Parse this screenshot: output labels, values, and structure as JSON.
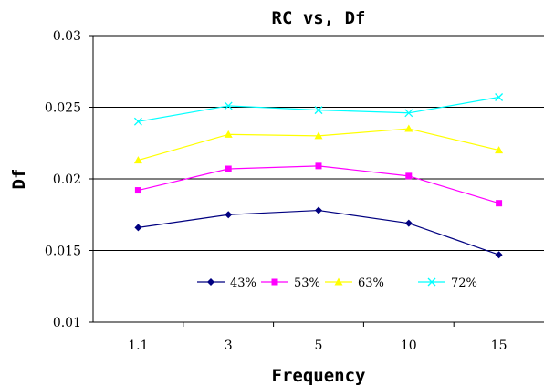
{
  "chart_data": {
    "type": "line",
    "title": "RC vs, Df",
    "xlabel": "Frequency",
    "ylabel": "Df",
    "categories": [
      "1.1",
      "3",
      "5",
      "10",
      "15"
    ],
    "ylim": [
      0.01,
      0.03
    ],
    "yticks": [
      0.01,
      0.015,
      0.02,
      0.025,
      0.03
    ],
    "ytick_labels": [
      "0.01",
      "0.015",
      "0.02",
      "0.025",
      "0.03"
    ],
    "grid": "horizontal",
    "legend_position": "bottom-center inside plot",
    "series": [
      {
        "name": "43%",
        "color": "#000080",
        "marker": "diamond",
        "values": [
          0.0166,
          0.0175,
          0.0178,
          0.0169,
          0.0147
        ]
      },
      {
        "name": "53%",
        "color": "#FF00FF",
        "marker": "square",
        "values": [
          0.0192,
          0.0207,
          0.0209,
          0.0202,
          0.0183
        ]
      },
      {
        "name": "63%",
        "color": "#FFFF00",
        "marker": "triangle",
        "values": [
          0.0213,
          0.0231,
          0.023,
          0.0235,
          0.022
        ]
      },
      {
        "name": "72%",
        "color": "#00FFFF",
        "marker": "x",
        "values": [
          0.024,
          0.0251,
          0.0248,
          0.0246,
          0.0257
        ]
      }
    ]
  }
}
